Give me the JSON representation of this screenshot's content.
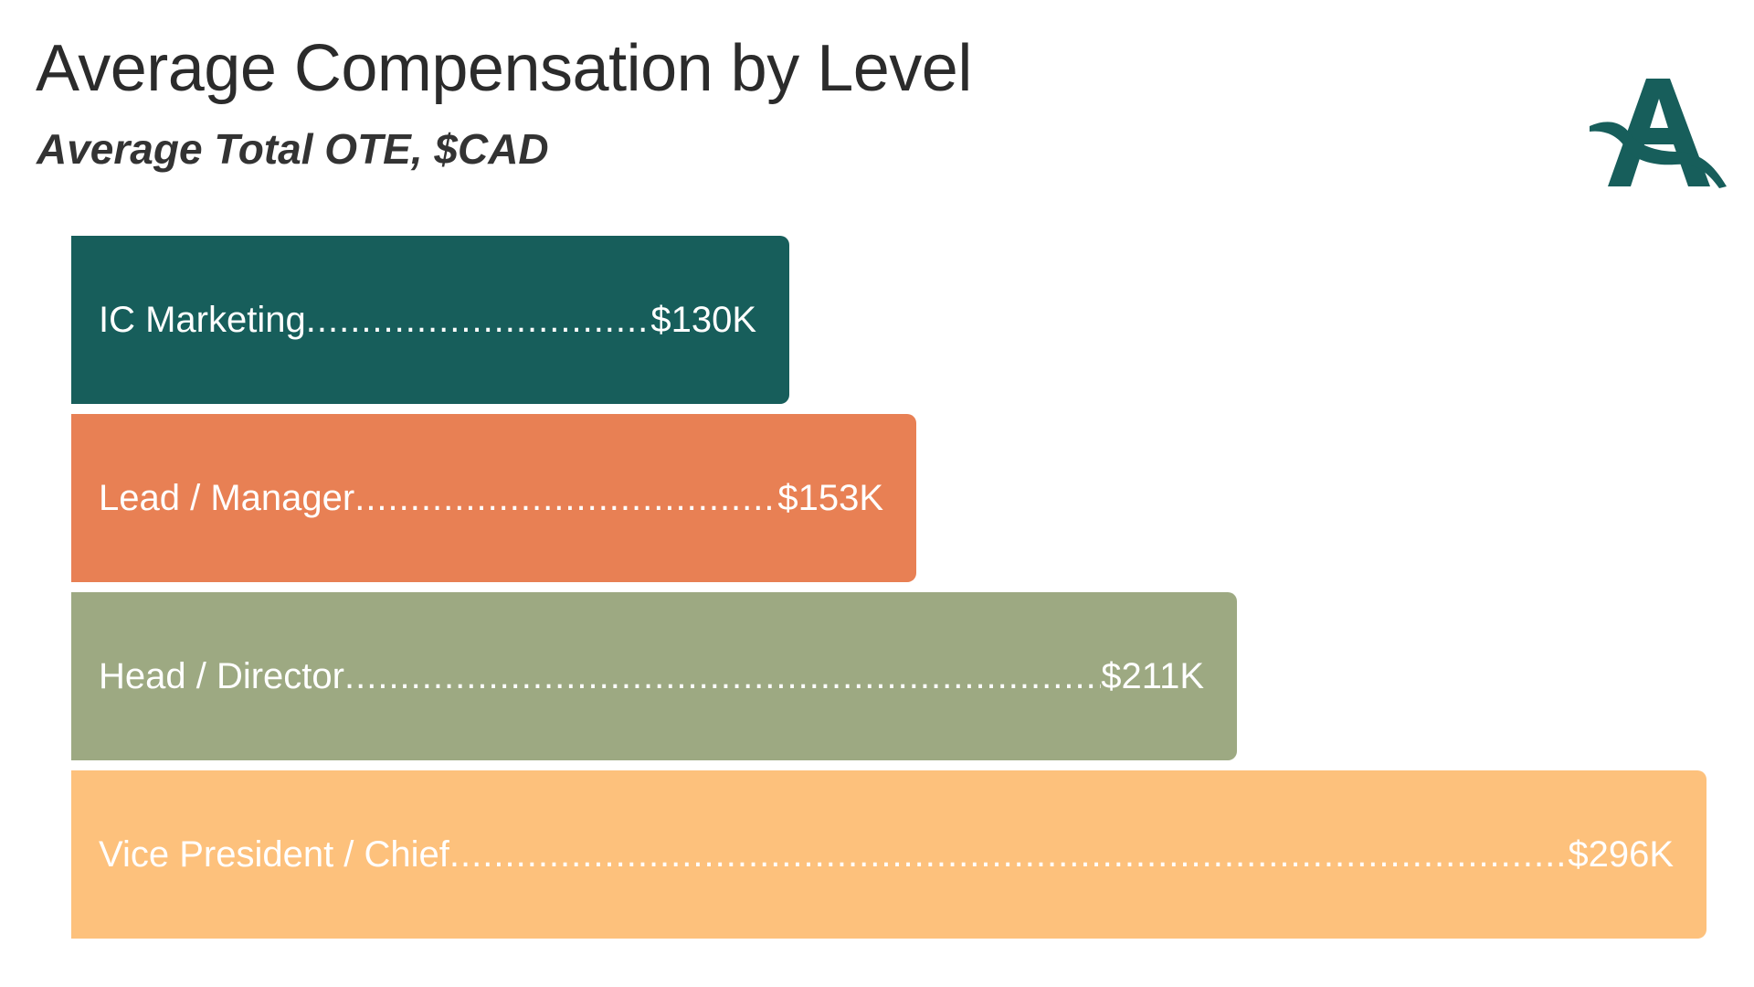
{
  "title": "Average Compensation by Level",
  "subtitle": "Average Total OTE, $CAD",
  "logo": {
    "icon": "stylized-letter-a-logo",
    "color": "#175e5b"
  },
  "chart_data": {
    "type": "bar",
    "orientation": "horizontal",
    "title": "Average Compensation by Level",
    "subtitle": "Average Total OTE, $CAD",
    "categories": [
      "IC Marketing",
      "Lead / Manager",
      "Head / Director",
      "Vice President / Chief"
    ],
    "values": [
      130,
      153,
      211,
      296
    ],
    "value_labels": [
      "$130K",
      "$153K",
      "$211K",
      "$296K"
    ],
    "colors": [
      "#175e5b",
      "#e88054",
      "#9da982",
      "#fdc17c"
    ],
    "xlim": [
      0,
      296
    ],
    "grid": false,
    "legend": "none"
  }
}
